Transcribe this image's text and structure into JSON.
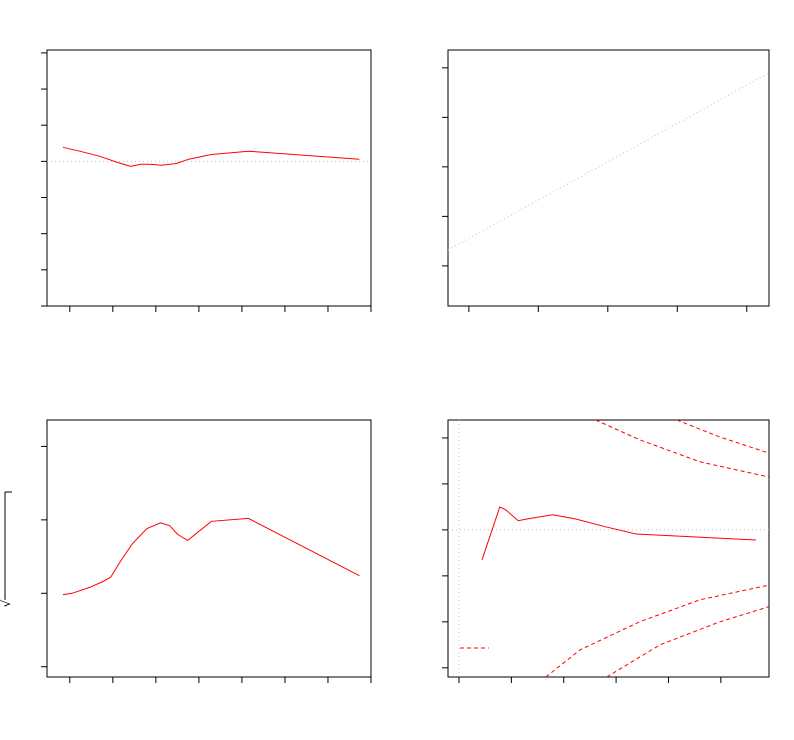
{
  "chart_data": [
    {
      "type": "line",
      "xlim": [
        -0.53,
        7.0
      ],
      "ylim": [
        -4,
        3.08
      ],
      "xticks": [
        0,
        1,
        2,
        3,
        4,
        5,
        6,
        7
      ],
      "yticks": [
        -4,
        -3,
        -2,
        -1,
        0,
        1,
        2,
        3
      ],
      "series": [
        {
          "color": "#bfbfbf",
          "dash": "dotted",
          "x": [
            -0.53,
            7.0
          ],
          "values": [
            0,
            0
          ]
        },
        {
          "color": "#ff0000",
          "dash": "solid",
          "x": [
            -0.16,
            0.23,
            0.7,
            1.11,
            1.42,
            1.65,
            1.86,
            2.13,
            2.48,
            2.76,
            3.29,
            4.15,
            6.73
          ],
          "values": [
            0.39,
            0.28,
            0.14,
            -0.03,
            -0.14,
            -0.08,
            -0.08,
            -0.11,
            -0.06,
            0.06,
            0.19,
            0.28,
            0.06
          ]
        }
      ]
    },
    {
      "type": "line",
      "xlim": [
        -2.3,
        2.32
      ],
      "ylim": [
        -2.81,
        2.36
      ],
      "xticks": [
        -2,
        -1,
        0,
        1,
        2
      ],
      "yticks": [
        -2,
        -1,
        0,
        1,
        2
      ],
      "series": [
        {
          "color": "#bfbfbf",
          "dash": "dotted",
          "x": [
            -2.3,
            2.32
          ],
          "values": [
            -1.68,
            1.9
          ]
        }
      ]
    },
    {
      "type": "line",
      "xlim": [
        -0.53,
        7.0
      ],
      "ylim": [
        -0.07,
        1.68
      ],
      "xticks": [
        0,
        1,
        2,
        3,
        4,
        5,
        6,
        7
      ],
      "yticks": [
        0,
        0.5,
        1,
        1.5
      ],
      "y_label": "√",
      "series": [
        {
          "color": "#ff0000",
          "dash": "solid",
          "x": [
            -0.16,
            0.05,
            0.46,
            0.77,
            0.95,
            1.16,
            1.46,
            1.79,
            2.11,
            2.32,
            2.51,
            2.74,
            3.29,
            4.15,
            6.73
          ],
          "values": [
            0.49,
            0.5,
            0.54,
            0.58,
            0.61,
            0.71,
            0.84,
            0.94,
            0.98,
            0.96,
            0.9,
            0.86,
            0.99,
            1.01,
            0.62
          ]
        }
      ]
    },
    {
      "type": "line",
      "xlim": [
        -0.21,
        5.92
      ],
      "ylim": [
        -3.2,
        2.39
      ],
      "xticks": [
        0,
        1,
        2,
        3,
        4,
        5
      ],
      "yticks": [
        -3,
        -2,
        -1,
        0,
        1,
        2
      ],
      "series": [
        {
          "color": "#bfbfbf",
          "dash": "dotted",
          "x": [
            -0.21,
            5.92
          ],
          "values": [
            0,
            0
          ]
        },
        {
          "color": "#bfbfbf",
          "dash": "dotted",
          "x": [
            0,
            0
          ],
          "values": [
            -3.2,
            2.39
          ]
        },
        {
          "color": "#ff0000",
          "dash": "solid",
          "x": [
            0.44,
            0.78,
            0.9,
            1.13,
            1.32,
            1.79,
            2.21,
            2.79,
            3.38,
            5.67
          ],
          "values": [
            -0.65,
            0.5,
            0.43,
            0.2,
            0.24,
            0.33,
            0.24,
            0.07,
            -0.09,
            -0.22
          ]
        },
        {
          "color": "#ff0000",
          "dash": "dashed",
          "x": [
            2.61,
            3.45,
            4.6,
            5.92
          ],
          "values": [
            2.39,
            1.96,
            1.48,
            1.15
          ]
        },
        {
          "color": "#ff0000",
          "dash": "dashed",
          "x": [
            4.16,
            4.98,
            5.92
          ],
          "values": [
            2.39,
            2.02,
            1.67
          ]
        },
        {
          "color": "#ff0000",
          "dash": "dashed",
          "x": [
            1.66,
            2.31,
            3.45,
            4.6,
            5.92
          ],
          "values": [
            -3.2,
            -2.61,
            -2.0,
            -1.52,
            -1.2
          ]
        },
        {
          "color": "#ff0000",
          "dash": "dashed",
          "x": [
            2.82,
            3.84,
            4.98,
            5.92
          ],
          "values": [
            -3.2,
            -2.5,
            -2.0,
            -1.67
          ]
        },
        {
          "color": "#ff0000",
          "dash": "dashed",
          "x": [
            0.02,
            0.57
          ],
          "values": [
            -2.57,
            -2.57
          ]
        }
      ]
    }
  ]
}
